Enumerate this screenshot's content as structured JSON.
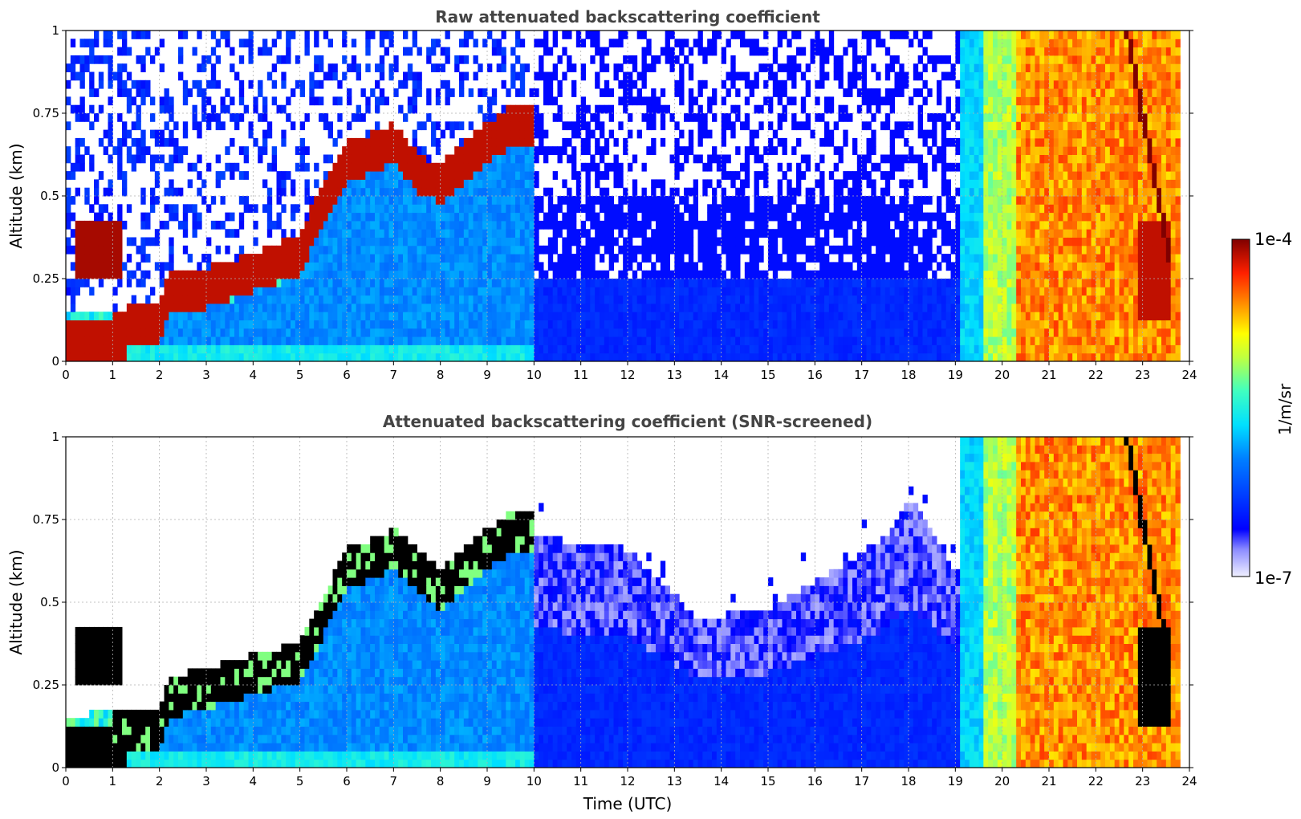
{
  "figure": {
    "xlabel": "Time (UTC)",
    "colorbar": {
      "label": "1/m/sr",
      "max_label": "1e-4",
      "min_label": "1e-7",
      "scale": "log",
      "colormap": "jet",
      "range": [
        1e-07,
        0.0001
      ]
    }
  },
  "chart_data": [
    {
      "type": "heatmap",
      "title": "Raw attenuated backscattering coefficient",
      "xlabel": "",
      "ylabel": "Altitude (km)",
      "xlim": [
        0,
        24
      ],
      "ylim": [
        0,
        1
      ],
      "x_ticks": [
        "0",
        "1",
        "2",
        "3",
        "4",
        "5",
        "6",
        "7",
        "8",
        "9",
        "10",
        "11",
        "12",
        "13",
        "14",
        "15",
        "16",
        "17",
        "18",
        "19",
        "20",
        "21",
        "22",
        "23",
        "24"
      ],
      "y_ticks": [
        "0",
        "0.25",
        "0.5",
        "0.75",
        "1"
      ],
      "grid": true,
      "layer_top_km": [
        [
          0,
          0.16
        ],
        [
          0.5,
          0.15
        ],
        [
          1.0,
          0.15
        ],
        [
          1.5,
          0.17
        ],
        [
          2.0,
          0.17
        ],
        [
          2.2,
          0.27
        ],
        [
          3.0,
          0.28
        ],
        [
          4.0,
          0.33
        ],
        [
          5.0,
          0.38
        ],
        [
          5.3,
          0.48
        ],
        [
          6.0,
          0.66
        ],
        [
          7.0,
          0.72
        ],
        [
          7.6,
          0.62
        ],
        [
          8.0,
          0.6
        ],
        [
          9.0,
          0.72
        ],
        [
          9.6,
          0.78
        ]
      ],
      "elevated_layer_km": {
        "x": [
          0.2,
          1.2
        ],
        "y": [
          0.25,
          0.42
        ]
      },
      "cloud_x_range": [
        19.1,
        23.8
      ],
      "noise_above_km_after_10h": 0.5
    },
    {
      "type": "heatmap",
      "title": "Attenuated backscattering coefficient (SNR-screened)",
      "xlabel": "Time (UTC)",
      "ylabel": "Altitude (km)",
      "xlim": [
        0,
        24
      ],
      "ylim": [
        0,
        1
      ],
      "x_ticks": [
        "0",
        "1",
        "2",
        "3",
        "4",
        "5",
        "6",
        "7",
        "8",
        "9",
        "10",
        "11",
        "12",
        "13",
        "14",
        "15",
        "16",
        "17",
        "18",
        "19",
        "20",
        "21",
        "22",
        "23",
        "24"
      ],
      "y_ticks": [
        "0",
        "0.25",
        "0.5",
        "0.75",
        "1"
      ],
      "grid": true,
      "screened_top_km": [
        [
          10,
          0.7
        ],
        [
          12,
          0.66
        ],
        [
          13,
          0.52
        ],
        [
          13.5,
          0.45
        ],
        [
          15,
          0.48
        ],
        [
          16.5,
          0.6
        ],
        [
          17.5,
          0.7
        ],
        [
          18,
          0.82
        ],
        [
          18.5,
          0.72
        ],
        [
          19,
          0.6
        ]
      ],
      "cloud_x_range": [
        19.1,
        23.8
      ]
    }
  ]
}
